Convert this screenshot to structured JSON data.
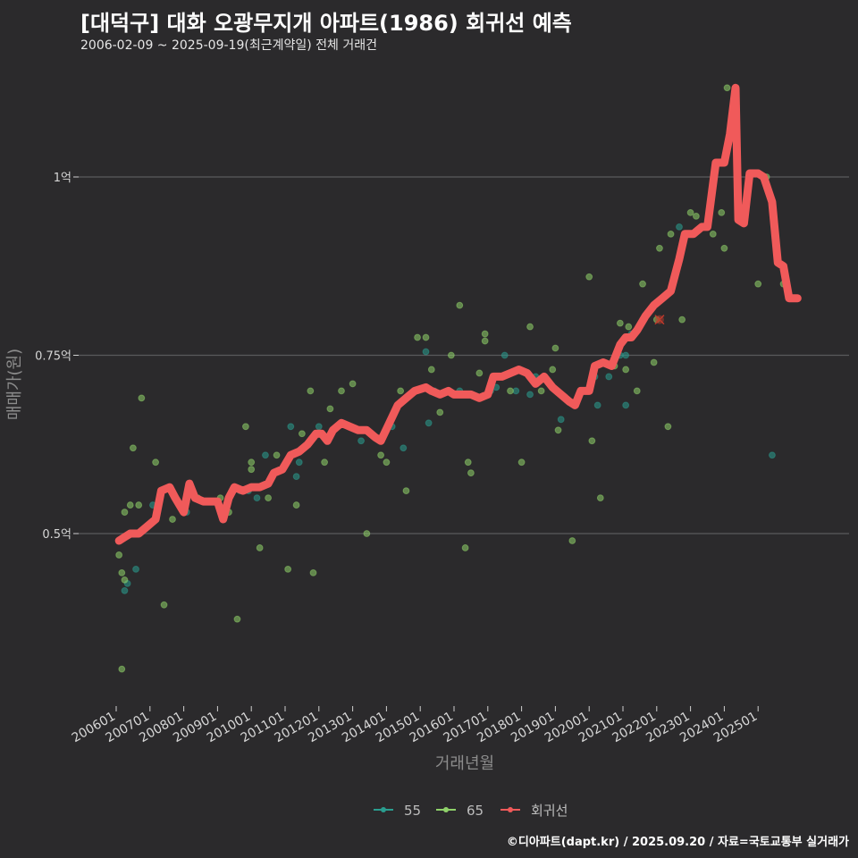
{
  "chart_data": {
    "type": "scatter",
    "title": "[대덕구] 대화 오광무지개 아파트(1986) 회귀선 예측",
    "subtitle": "2006-02-09 ~ 2025-09-19(최근계약일) 전체 거래건",
    "xlabel": "거래년월",
    "ylabel": "매매가(원)",
    "caption": "©디아파트(dapt.kr) / 2025.09.20 / 자료=국토교통부 실거래가",
    "x_ticks": [
      "200601",
      "200701",
      "200801",
      "200901",
      "201001",
      "201101",
      "201201",
      "201301",
      "201401",
      "201501",
      "201601",
      "201701",
      "201801",
      "201901",
      "202001",
      "202101",
      "202201",
      "202301",
      "202401",
      "202501"
    ],
    "y_ticks": [
      {
        "value": 0.5,
        "label": "0.5억"
      },
      {
        "value": 0.75,
        "label": "0.75억"
      },
      {
        "value": 1.0,
        "label": "1억"
      }
    ],
    "ylim": [
      0.25,
      1.25
    ],
    "grid": "horizontal",
    "legend_position": "bottom",
    "legend": [
      {
        "label": "55",
        "color": "#2a9d8f"
      },
      {
        "label": "65",
        "color": "#8fd16a"
      },
      {
        "label": "회귀선",
        "color": "#f05a5a"
      }
    ],
    "point_series": [
      {
        "name": "55",
        "color": "#2a9d8f",
        "points": [
          [
            "2006-04",
            0.42
          ],
          [
            "2006-05",
            0.43
          ],
          [
            "2006-08",
            0.45
          ],
          [
            "2007-02",
            0.54
          ],
          [
            "2008-02",
            0.53
          ],
          [
            "2009-03",
            0.53
          ],
          [
            "2009-09",
            0.56
          ],
          [
            "2009-12",
            0.56
          ],
          [
            "2010-03",
            0.55
          ],
          [
            "2010-06",
            0.61
          ],
          [
            "2011-03",
            0.65
          ],
          [
            "2011-05",
            0.58
          ],
          [
            "2011-06",
            0.6
          ],
          [
            "2012-01",
            0.65
          ],
          [
            "2013-04",
            0.63
          ],
          [
            "2014-03",
            0.65
          ],
          [
            "2014-07",
            0.62
          ],
          [
            "2015-03",
            0.755
          ],
          [
            "2015-04",
            0.655
          ],
          [
            "2015-06",
            0.7
          ],
          [
            "2016-03",
            0.7
          ],
          [
            "2017-02",
            0.7
          ],
          [
            "2017-04",
            0.705
          ],
          [
            "2017-07",
            0.75
          ],
          [
            "2017-11",
            0.7
          ],
          [
            "2018-04",
            0.695
          ],
          [
            "2018-06",
            0.72
          ],
          [
            "2019-03",
            0.66
          ],
          [
            "2020-03",
            0.72
          ],
          [
            "2020-04",
            0.68
          ],
          [
            "2020-08",
            0.72
          ],
          [
            "2020-12",
            0.75
          ],
          [
            "2021-02",
            0.75
          ],
          [
            "2021-02",
            0.68
          ],
          [
            "2021-04",
            0.78
          ],
          [
            "2021-08",
            0.8
          ],
          [
            "2022-09",
            0.93
          ],
          [
            "2025-06",
            0.61
          ]
        ]
      },
      {
        "name": "65",
        "color": "#8fd16a",
        "points": [
          [
            "2006-02",
            0.47
          ],
          [
            "2006-03",
            0.445
          ],
          [
            "2006-03",
            0.31
          ],
          [
            "2006-04",
            0.53
          ],
          [
            "2006-04",
            0.435
          ],
          [
            "2006-06",
            0.54
          ],
          [
            "2006-07",
            0.62
          ],
          [
            "2006-09",
            0.54
          ],
          [
            "2006-10",
            0.69
          ],
          [
            "2007-03",
            0.6
          ],
          [
            "2007-06",
            0.4
          ],
          [
            "2007-09",
            0.52
          ],
          [
            "2008-02",
            0.545
          ],
          [
            "2008-06",
            0.55
          ],
          [
            "2009-02",
            0.55
          ],
          [
            "2009-05",
            0.53
          ],
          [
            "2009-08",
            0.38
          ],
          [
            "2009-11",
            0.65
          ],
          [
            "2010-01",
            0.59
          ],
          [
            "2010-01",
            0.6
          ],
          [
            "2010-04",
            0.48
          ],
          [
            "2010-07",
            0.55
          ],
          [
            "2010-10",
            0.61
          ],
          [
            "2011-02",
            0.45
          ],
          [
            "2011-05",
            0.54
          ],
          [
            "2011-07",
            0.64
          ],
          [
            "2011-10",
            0.7
          ],
          [
            "2011-11",
            0.445
          ],
          [
            "2012-03",
            0.6
          ],
          [
            "2012-05",
            0.675
          ],
          [
            "2012-09",
            0.7
          ],
          [
            "2013-01",
            0.71
          ],
          [
            "2013-06",
            0.5
          ],
          [
            "2013-11",
            0.61
          ],
          [
            "2014-01",
            0.6
          ],
          [
            "2014-06",
            0.7
          ],
          [
            "2014-08",
            0.56
          ],
          [
            "2014-12",
            0.775
          ],
          [
            "2015-03",
            0.775
          ],
          [
            "2015-05",
            0.73
          ],
          [
            "2015-08",
            0.67
          ],
          [
            "2015-12",
            0.75
          ],
          [
            "2016-03",
            0.82
          ],
          [
            "2016-05",
            0.48
          ],
          [
            "2016-06",
            0.6
          ],
          [
            "2016-07",
            0.585
          ],
          [
            "2016-10",
            0.725
          ],
          [
            "2016-12",
            0.77
          ],
          [
            "2016-12",
            0.78
          ],
          [
            "2017-09",
            0.7
          ],
          [
            "2018-01",
            0.6
          ],
          [
            "2018-04",
            0.79
          ],
          [
            "2018-08",
            0.7
          ],
          [
            "2018-12",
            0.73
          ],
          [
            "2019-01",
            0.76
          ],
          [
            "2019-02",
            0.645
          ],
          [
            "2019-07",
            0.49
          ],
          [
            "2020-01",
            0.86
          ],
          [
            "2020-02",
            0.63
          ],
          [
            "2020-05",
            0.55
          ],
          [
            "2020-10",
            0.735
          ],
          [
            "2020-12",
            0.795
          ],
          [
            "2021-02",
            0.73
          ],
          [
            "2021-03",
            0.79
          ],
          [
            "2021-06",
            0.7
          ],
          [
            "2021-08",
            0.85
          ],
          [
            "2021-12",
            0.74
          ],
          [
            "2022-01",
            0.8
          ],
          [
            "2022-02",
            0.9
          ],
          [
            "2022-05",
            0.65
          ],
          [
            "2022-06",
            0.92
          ],
          [
            "2022-10",
            0.8
          ],
          [
            "2023-01",
            0.95
          ],
          [
            "2023-03",
            0.945
          ],
          [
            "2023-06",
            0.93
          ],
          [
            "2023-09",
            0.92
          ],
          [
            "2023-12",
            0.95
          ],
          [
            "2024-01",
            0.9
          ],
          [
            "2024-02",
            1.125
          ],
          [
            "2025-01",
            0.85
          ],
          [
            "2025-04",
            1.0
          ],
          [
            "2025-10",
            0.85
          ]
        ]
      }
    ],
    "outlier": {
      "x": "2022-02",
      "y": 0.8,
      "color": "#c0392b"
    },
    "regression": {
      "name": "회귀선",
      "color": "#f05a5a",
      "points": [
        [
          "2006-02",
          0.49
        ],
        [
          "2006-04",
          0.495
        ],
        [
          "2006-06",
          0.5
        ],
        [
          "2006-09",
          0.5
        ],
        [
          "2006-12",
          0.51
        ],
        [
          "2007-03",
          0.52
        ],
        [
          "2007-05",
          0.56
        ],
        [
          "2007-08",
          0.565
        ],
        [
          "2007-10",
          0.55
        ],
        [
          "2008-01",
          0.53
        ],
        [
          "2008-03",
          0.57
        ],
        [
          "2008-05",
          0.55
        ],
        [
          "2008-08",
          0.545
        ],
        [
          "2008-11",
          0.545
        ],
        [
          "2009-01",
          0.545
        ],
        [
          "2009-03",
          0.52
        ],
        [
          "2009-05",
          0.55
        ],
        [
          "2009-07",
          0.565
        ],
        [
          "2009-10",
          0.56
        ],
        [
          "2010-01",
          0.565
        ],
        [
          "2010-04",
          0.565
        ],
        [
          "2010-07",
          0.57
        ],
        [
          "2010-09",
          0.585
        ],
        [
          "2010-12",
          0.59
        ],
        [
          "2011-03",
          0.61
        ],
        [
          "2011-06",
          0.615
        ],
        [
          "2011-09",
          0.625
        ],
        [
          "2011-12",
          0.64
        ],
        [
          "2012-02",
          0.64
        ],
        [
          "2012-04",
          0.63
        ],
        [
          "2012-06",
          0.645
        ],
        [
          "2012-09",
          0.655
        ],
        [
          "2012-12",
          0.65
        ],
        [
          "2013-03",
          0.645
        ],
        [
          "2013-06",
          0.645
        ],
        [
          "2013-09",
          0.635
        ],
        [
          "2013-11",
          0.63
        ],
        [
          "2014-02",
          0.655
        ],
        [
          "2014-05",
          0.68
        ],
        [
          "2014-08",
          0.69
        ],
        [
          "2014-11",
          0.7
        ],
        [
          "2015-03",
          0.705
        ],
        [
          "2015-05",
          0.7
        ],
        [
          "2015-08",
          0.695
        ],
        [
          "2015-11",
          0.7
        ],
        [
          "2016-01",
          0.695
        ],
        [
          "2016-04",
          0.695
        ],
        [
          "2016-07",
          0.695
        ],
        [
          "2016-10",
          0.69
        ],
        [
          "2017-01",
          0.695
        ],
        [
          "2017-03",
          0.72
        ],
        [
          "2017-06",
          0.72
        ],
        [
          "2017-09",
          0.725
        ],
        [
          "2017-12",
          0.73
        ],
        [
          "2018-03",
          0.725
        ],
        [
          "2018-06",
          0.71
        ],
        [
          "2018-09",
          0.72
        ],
        [
          "2018-12",
          0.705
        ],
        [
          "2019-03",
          0.695
        ],
        [
          "2019-06",
          0.685
        ],
        [
          "2019-08",
          0.68
        ],
        [
          "2019-10",
          0.7
        ],
        [
          "2020-01",
          0.7
        ],
        [
          "2020-03",
          0.735
        ],
        [
          "2020-06",
          0.74
        ],
        [
          "2020-09",
          0.735
        ],
        [
          "2020-12",
          0.765
        ],
        [
          "2021-02",
          0.775
        ],
        [
          "2021-04",
          0.775
        ],
        [
          "2021-06",
          0.785
        ],
        [
          "2021-09",
          0.805
        ],
        [
          "2021-12",
          0.82
        ],
        [
          "2022-03",
          0.83
        ],
        [
          "2022-06",
          0.84
        ],
        [
          "2022-09",
          0.885
        ],
        [
          "2022-11",
          0.92
        ],
        [
          "2023-02",
          0.92
        ],
        [
          "2023-05",
          0.93
        ],
        [
          "2023-07",
          0.93
        ],
        [
          "2023-10",
          1.02
        ],
        [
          "2024-01",
          1.02
        ],
        [
          "2024-03",
          1.06
        ],
        [
          "2024-05",
          1.125
        ],
        [
          "2024-06",
          0.94
        ],
        [
          "2024-08",
          0.935
        ],
        [
          "2024-10",
          1.005
        ],
        [
          "2025-01",
          1.005
        ],
        [
          "2025-03",
          1.0
        ],
        [
          "2025-06",
          0.965
        ],
        [
          "2025-08",
          0.88
        ],
        [
          "2025-10",
          0.875
        ],
        [
          "2025-12",
          0.83
        ],
        [
          "2026-03",
          0.83
        ]
      ]
    }
  }
}
